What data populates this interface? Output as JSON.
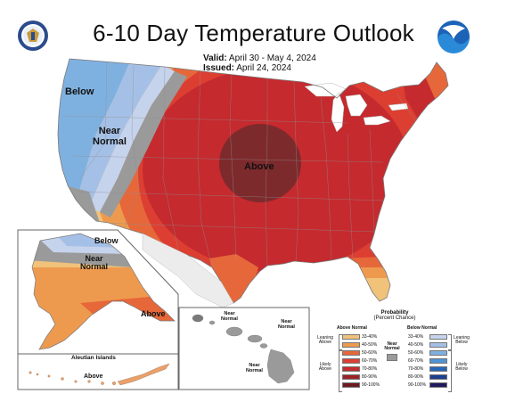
{
  "header": {
    "title": "6-10 Day Temperature Outlook",
    "valid_label": "Valid:",
    "valid_value": "April 30 - May 4, 2024",
    "issued_label": "Issued:",
    "issued_value": "April 24, 2024"
  },
  "logos": {
    "left": "commerce-seal-icon",
    "right": "noaa-logo-icon"
  },
  "map_labels": {
    "below": "Below",
    "near_normal_l1": "Near",
    "near_normal_l2": "Normal",
    "above": "Above"
  },
  "alaska": {
    "below": "Below",
    "near_l1": "Near",
    "near_l2": "Normal",
    "above": "Above",
    "aleutian_title": "Aleutian Islands",
    "aleutian_above": "Above"
  },
  "hawaii": {
    "a_l1": "Near",
    "a_l2": "Normal",
    "b_l1": "Near",
    "b_l2": "Normal",
    "c_l1": "Near",
    "c_l2": "Normal"
  },
  "legend": {
    "title_l1": "Probability",
    "title_l2": "(Percent Chance)",
    "above_header": "Above Normal",
    "below_header": "Below Normal",
    "leaning_above_l1": "Leaning",
    "leaning_above_l2": "Above",
    "likely_above_l1": "Likely",
    "likely_above_l2": "Above",
    "leaning_below_l1": "Leaning",
    "leaning_below_l2": "Below",
    "likely_below_l1": "Likely",
    "likely_below_l2": "Below",
    "near_l1": "Near",
    "near_l2": "Normal",
    "ranges": [
      "33-40%",
      "40-50%",
      "50-60%",
      "60-70%",
      "70-80%",
      "80-90%",
      "90-100%"
    ],
    "above_colors": [
      "#f0c27a",
      "#ee9a4e",
      "#e6683a",
      "#dc3f32",
      "#c52a2e",
      "#9b2328",
      "#6b1b1f"
    ],
    "below_colors": [
      "#c6d3ec",
      "#a5c0e6",
      "#7fb1e0",
      "#4e93d3",
      "#2766b7",
      "#1d3f8f",
      "#201a5c"
    ],
    "near_color": "#9a9a9a"
  },
  "colors": {
    "above_33": "#f0c27a",
    "above_40": "#ee9a4e",
    "above_50": "#e6683a",
    "above_60": "#dc3f32",
    "above_70": "#c52a2e",
    "above_80": "#7d2a2c",
    "below_33": "#c6d3ec",
    "below_40": "#a5c0e6",
    "below_50": "#7fb1e0",
    "near": "#9a9a9a",
    "border": "#a0a0a0"
  }
}
